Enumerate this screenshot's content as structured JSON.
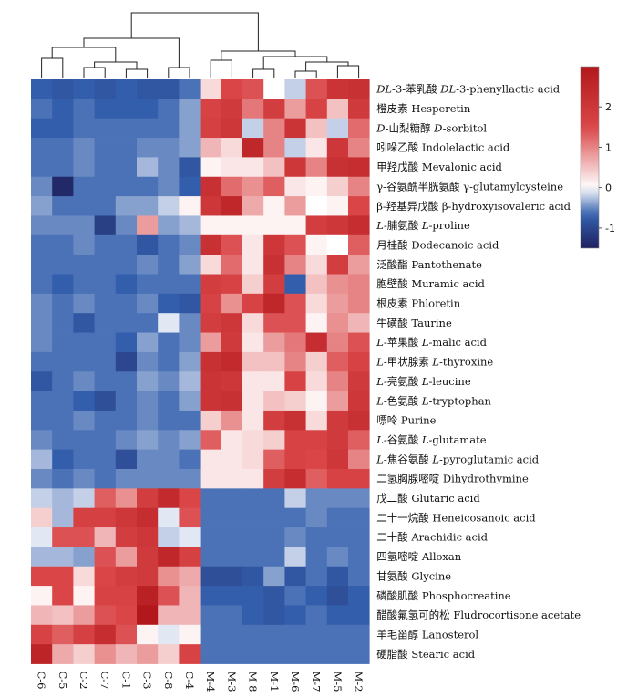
{
  "chart_data": {
    "type": "heatmap",
    "title": "",
    "columns": [
      "C-6",
      "C-5",
      "C-2",
      "C-7",
      "C-1",
      "C-3",
      "C-8",
      "C-4",
      "M-4",
      "M-3",
      "M-8",
      "M-1",
      "M-6",
      "M-7",
      "M-5",
      "M-2"
    ],
    "rows": [
      "DL-3-苯乳酸 DL-3-phenyllactic acid",
      "橙皮素 Hesperetin",
      "D-山梨糖醇 D-sorbitol",
      "吲哚乙酸 Indolelactic acid",
      "甲羟戊酸 Mevalonic acid",
      "γ-谷氨酰半胱氨酸 γ-glutamylcysteine",
      "β-羟基异戊酸 β-hydroxyisovaleric acid",
      "L-脯氨酸 L-proline",
      "月桂酸 Dodecanoic acid",
      "泛酸酯 Pantothenate",
      "胞壁酸 Muramic acid",
      "根皮素 Phloretin",
      "牛磺酸 Taurine",
      "L-苹果酸 L-malic acid",
      "L-甲状腺素 L-thyroxine",
      "L-亮氨酸 L-leucine",
      "L-色氨酸 L-tryptophan",
      "嘌呤 Purine",
      "L-谷氨酸 L-glutamate",
      "L-焦谷氨酸 L-pyroglutamic acid",
      "二氢胸腺嘧啶 Dihydrothymine",
      "戊二酸 Glutaric acid",
      "二十一烷酸 Heneicosanoic acid",
      "二十酸 Arachidic acid",
      "四氢嘧啶 Alloxan",
      "甘氨酸 Glycine",
      "磷酸肌酸 Phosphocreatine",
      "醋酸氟氢可的松 Fludrocortisone acetate",
      "羊毛甾醇 Lanosterol",
      "硬脂酸 Stearic acid"
    ],
    "values": [
      [
        -0.7,
        -0.8,
        -0.7,
        -0.8,
        -0.7,
        -0.8,
        -0.8,
        -0.6,
        0.3,
        1.5,
        1.4,
        0.0,
        -0.2,
        1.4,
        2.1,
        2.2
      ],
      [
        -0.6,
        -0.7,
        -0.6,
        -0.7,
        -0.7,
        -0.7,
        -0.6,
        -0.4,
        1.6,
        1.9,
        1.1,
        1.8,
        0.8,
        1.6,
        0.5,
        1.9
      ],
      [
        -0.7,
        -0.7,
        -0.6,
        -0.6,
        -0.6,
        -0.6,
        -0.6,
        -0.4,
        1.7,
        2.0,
        -0.2,
        1.0,
        2.1,
        0.5,
        -0.2,
        1.2
      ],
      [
        -0.6,
        -0.6,
        -0.5,
        -0.6,
        -0.6,
        -0.5,
        -0.5,
        -0.4,
        0.6,
        0.3,
        2.5,
        1.0,
        -0.2,
        0.2,
        2.0,
        1.0
      ],
      [
        -0.6,
        -0.6,
        -0.5,
        -0.6,
        -0.6,
        -0.3,
        -0.5,
        -0.8,
        0.1,
        0.2,
        0.2,
        0.5,
        2.0,
        1.0,
        2.2,
        2.3
      ],
      [
        -0.5,
        -1.4,
        -0.6,
        -0.6,
        -0.6,
        -0.6,
        -0.5,
        -0.7,
        2.2,
        1.2,
        0.9,
        1.3,
        0.2,
        0.1,
        0.4,
        1.0
      ],
      [
        -0.4,
        -0.6,
        -0.6,
        -0.6,
        -0.4,
        -0.4,
        -0.2,
        0.1,
        2.0,
        2.5,
        0.7,
        0.1,
        0.8,
        0.0,
        0.1,
        1.5
      ],
      [
        -0.5,
        -0.5,
        -0.5,
        -1.1,
        -0.5,
        0.8,
        -0.4,
        -0.3,
        0.1,
        0.1,
        0.1,
        0.1,
        0.1,
        1.8,
        2.0,
        2.3
      ],
      [
        -0.6,
        -0.6,
        -0.5,
        -0.6,
        -0.6,
        -0.8,
        -0.6,
        -0.5,
        2.2,
        1.4,
        0.2,
        2.0,
        1.4,
        0.1,
        0.0,
        1.3
      ],
      [
        -0.6,
        -0.6,
        -0.6,
        -0.6,
        -0.6,
        -0.5,
        -0.6,
        -0.4,
        0.3,
        1.2,
        0.2,
        2.2,
        1.0,
        0.3,
        1.8,
        0.8
      ],
      [
        -0.6,
        -0.7,
        -0.6,
        -0.6,
        -0.7,
        -0.6,
        -0.6,
        -0.6,
        1.8,
        1.6,
        0.4,
        1.8,
        -0.7,
        0.5,
        0.9,
        1.0
      ],
      [
        -0.5,
        -0.6,
        -0.5,
        -0.6,
        -0.6,
        -0.5,
        -0.7,
        -0.8,
        1.6,
        0.9,
        1.6,
        2.5,
        1.4,
        0.3,
        0.8,
        1.0
      ],
      [
        -0.5,
        -0.6,
        -0.8,
        -0.6,
        -0.6,
        -0.6,
        -0.1,
        -0.5,
        1.8,
        2.0,
        0.3,
        1.4,
        1.4,
        0.1,
        0.9,
        0.6
      ],
      [
        -0.5,
        -0.6,
        -0.6,
        -0.6,
        -0.7,
        -0.4,
        -0.6,
        -0.5,
        0.8,
        1.9,
        0.2,
        0.8,
        1.1,
        2.3,
        1.0,
        1.4
      ],
      [
        -0.6,
        -0.6,
        -0.6,
        -0.6,
        -1.0,
        -0.5,
        -0.6,
        -0.4,
        2.2,
        2.4,
        0.5,
        0.5,
        1.0,
        0.4,
        1.3,
        1.6
      ],
      [
        -0.8,
        -0.6,
        -0.5,
        -0.6,
        -0.6,
        -0.4,
        -0.5,
        -0.3,
        2.1,
        2.0,
        0.2,
        0.2,
        1.6,
        0.3,
        1.0,
        1.9
      ],
      [
        -0.6,
        -0.6,
        -0.7,
        -0.9,
        -0.6,
        -0.5,
        -0.6,
        -0.4,
        2.1,
        2.2,
        0.2,
        0.5,
        0.4,
        0.1,
        0.8,
        2.0
      ],
      [
        -0.6,
        -0.6,
        -0.5,
        -0.6,
        -0.6,
        -0.5,
        -0.6,
        -0.6,
        0.4,
        0.9,
        0.2,
        1.8,
        2.2,
        0.3,
        1.9,
        2.2
      ],
      [
        -0.5,
        -0.6,
        -0.6,
        -0.6,
        -0.5,
        -0.4,
        -0.5,
        -0.4,
        1.3,
        0.2,
        0.3,
        0.4,
        1.6,
        1.6,
        1.9,
        1.3
      ],
      [
        -0.3,
        -0.7,
        -0.6,
        -0.6,
        -0.9,
        -0.5,
        -0.5,
        -0.6,
        0.2,
        0.2,
        0.3,
        1.3,
        1.6,
        1.5,
        2.0,
        1.0
      ],
      [
        -0.5,
        -0.6,
        -0.5,
        -0.6,
        -0.5,
        -0.5,
        -0.5,
        -0.5,
        0.2,
        0.2,
        0.2,
        1.8,
        2.3,
        1.3,
        1.6,
        1.6
      ],
      [
        -0.2,
        -0.3,
        -0.2,
        1.3,
        0.9,
        1.8,
        2.4,
        1.5,
        -0.6,
        -0.6,
        -0.6,
        -0.6,
        -0.2,
        -0.5,
        -0.5,
        -0.5
      ],
      [
        0.4,
        -0.3,
        1.7,
        1.7,
        2.0,
        2.3,
        -0.1,
        1.4,
        -0.6,
        -0.6,
        -0.6,
        -0.6,
        -0.6,
        -0.5,
        -0.6,
        -0.6
      ],
      [
        -0.1,
        1.4,
        1.4,
        0.6,
        1.8,
        2.0,
        -0.2,
        -0.1,
        -0.6,
        -0.6,
        -0.6,
        -0.6,
        -0.5,
        -0.6,
        -0.6,
        -0.6
      ],
      [
        -0.3,
        -0.3,
        -0.4,
        1.4,
        0.8,
        1.9,
        2.5,
        1.7,
        -0.6,
        -0.6,
        -0.6,
        -0.6,
        -0.2,
        -0.6,
        -0.5,
        -0.6
      ],
      [
        1.5,
        1.5,
        0.3,
        1.5,
        1.8,
        1.9,
        0.9,
        0.7,
        -0.9,
        -0.9,
        -0.8,
        -0.4,
        -0.8,
        -0.6,
        -0.8,
        -0.6
      ],
      [
        0.1,
        1.5,
        0.1,
        1.6,
        1.6,
        2.7,
        1.4,
        0.6,
        -0.7,
        -0.7,
        -0.7,
        -0.8,
        -0.6,
        -0.7,
        -0.9,
        -0.7
      ],
      [
        0.6,
        0.5,
        0.8,
        1.4,
        1.5,
        3.0,
        0.6,
        0.6,
        -0.6,
        -0.6,
        -0.7,
        -0.8,
        -0.7,
        -0.6,
        -0.7,
        -0.7
      ],
      [
        1.6,
        1.3,
        1.7,
        2.3,
        1.4,
        0.1,
        -0.1,
        0.1,
        -0.6,
        -0.6,
        -0.6,
        -0.6,
        -0.6,
        -0.6,
        -0.6,
        -0.6
      ],
      [
        2.6,
        0.7,
        0.4,
        0.9,
        0.6,
        0.8,
        0.4,
        1.6,
        -0.6,
        -0.6,
        -0.6,
        -0.6,
        -0.6,
        -0.6,
        -0.6,
        -0.6
      ]
    ],
    "colorbar": {
      "min": -1.5,
      "max": 3.0,
      "ticks": [
        2,
        1,
        0,
        -1
      ],
      "low_color": "#20215f",
      "mid_color": "#ffffff",
      "high_color": "#b2181b"
    },
    "column_dendrogram": true,
    "legend": "top-right"
  }
}
